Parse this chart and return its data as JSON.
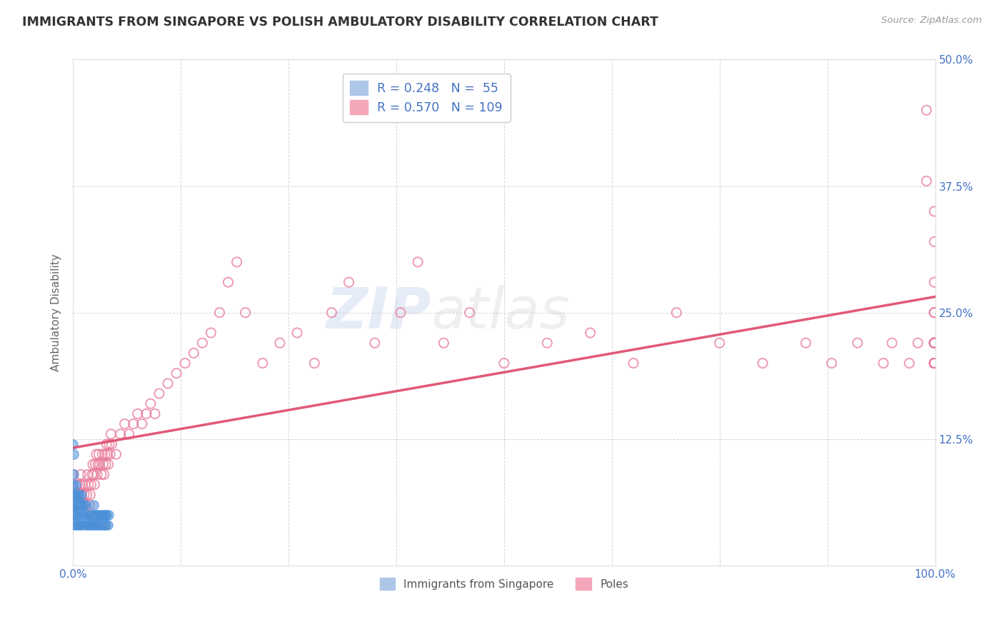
{
  "title": "IMMIGRANTS FROM SINGAPORE VS POLISH AMBULATORY DISABILITY CORRELATION CHART",
  "source": "Source: ZipAtlas.com",
  "ylabel": "Ambulatory Disability",
  "xlim": [
    0.0,
    1.0
  ],
  "ylim": [
    0.0,
    0.5
  ],
  "singapore_color": "#4a90d9",
  "poles_color": "#e87a9a",
  "regression_poles_color": "#e05070",
  "regression_sg_color": "#6699cc",
  "watermark_zip": "ZIP",
  "watermark_atlas": "atlas",
  "background_color": "#ffffff",
  "grid_color": "#cccccc",
  "legend_sg_label": "R = 0.248   N =  55",
  "legend_poles_label": "R = 0.570   N = 109",
  "legend_bottom_sg": "Immigrants from Singapore",
  "legend_bottom_poles": "Poles",
  "sg_R": "0.248",
  "sg_N": "55",
  "poles_R": "0.570",
  "poles_N": "109",
  "singapore_x": [
    0.0,
    0.0,
    0.0,
    0.001,
    0.001,
    0.001,
    0.001,
    0.001,
    0.002,
    0.002,
    0.003,
    0.003,
    0.003,
    0.004,
    0.004,
    0.005,
    0.006,
    0.006,
    0.007,
    0.007,
    0.008,
    0.009,
    0.01,
    0.01,
    0.01,
    0.011,
    0.012,
    0.013,
    0.014,
    0.015,
    0.016,
    0.017,
    0.018,
    0.019,
    0.02,
    0.021,
    0.022,
    0.023,
    0.024,
    0.025,
    0.026,
    0.027,
    0.028,
    0.029,
    0.03,
    0.031,
    0.033,
    0.034,
    0.035,
    0.036,
    0.037,
    0.038,
    0.039,
    0.04,
    0.041
  ],
  "singapore_y": [
    0.05,
    0.08,
    0.12,
    0.04,
    0.06,
    0.07,
    0.09,
    0.11,
    0.05,
    0.07,
    0.04,
    0.06,
    0.08,
    0.05,
    0.07,
    0.06,
    0.04,
    0.06,
    0.05,
    0.07,
    0.04,
    0.06,
    0.04,
    0.06,
    0.07,
    0.05,
    0.06,
    0.04,
    0.05,
    0.06,
    0.04,
    0.05,
    0.04,
    0.05,
    0.04,
    0.05,
    0.04,
    0.05,
    0.06,
    0.04,
    0.05,
    0.04,
    0.05,
    0.04,
    0.05,
    0.04,
    0.05,
    0.04,
    0.05,
    0.04,
    0.05,
    0.04,
    0.05,
    0.04,
    0.05
  ],
  "poles_x": [
    0.0,
    0.0,
    0.001,
    0.002,
    0.003,
    0.004,
    0.005,
    0.006,
    0.007,
    0.008,
    0.009,
    0.01,
    0.011,
    0.012,
    0.013,
    0.014,
    0.015,
    0.016,
    0.017,
    0.018,
    0.019,
    0.02,
    0.021,
    0.022,
    0.023,
    0.024,
    0.025,
    0.026,
    0.027,
    0.028,
    0.029,
    0.03,
    0.031,
    0.033,
    0.034,
    0.035,
    0.036,
    0.037,
    0.038,
    0.039,
    0.04,
    0.041,
    0.042,
    0.043,
    0.044,
    0.045,
    0.05,
    0.055,
    0.06,
    0.065,
    0.07,
    0.075,
    0.08,
    0.085,
    0.09,
    0.095,
    0.1,
    0.11,
    0.12,
    0.13,
    0.14,
    0.15,
    0.16,
    0.17,
    0.18,
    0.19,
    0.2,
    0.22,
    0.24,
    0.26,
    0.28,
    0.3,
    0.32,
    0.35,
    0.38,
    0.4,
    0.43,
    0.46,
    0.5,
    0.55,
    0.6,
    0.65,
    0.7,
    0.75,
    0.8,
    0.85,
    0.88,
    0.91,
    0.94,
    0.95,
    0.97,
    0.98,
    0.99,
    0.99,
    0.999,
    0.999,
    0.999,
    0.999,
    0.999,
    0.999,
    0.999,
    0.999,
    0.999,
    0.999,
    0.999,
    0.999,
    0.999,
    0.999,
    0.999
  ],
  "poles_y": [
    0.07,
    0.09,
    0.06,
    0.05,
    0.07,
    0.06,
    0.08,
    0.07,
    0.06,
    0.08,
    0.09,
    0.07,
    0.08,
    0.06,
    0.07,
    0.08,
    0.06,
    0.07,
    0.09,
    0.08,
    0.06,
    0.07,
    0.08,
    0.09,
    0.1,
    0.09,
    0.08,
    0.1,
    0.11,
    0.09,
    0.1,
    0.11,
    0.1,
    0.09,
    0.11,
    0.1,
    0.09,
    0.11,
    0.1,
    0.12,
    0.11,
    0.1,
    0.12,
    0.11,
    0.13,
    0.12,
    0.11,
    0.13,
    0.14,
    0.13,
    0.14,
    0.15,
    0.14,
    0.15,
    0.16,
    0.15,
    0.17,
    0.18,
    0.19,
    0.2,
    0.21,
    0.22,
    0.23,
    0.25,
    0.28,
    0.3,
    0.25,
    0.2,
    0.22,
    0.23,
    0.2,
    0.25,
    0.28,
    0.22,
    0.25,
    0.3,
    0.22,
    0.25,
    0.2,
    0.22,
    0.23,
    0.2,
    0.25,
    0.22,
    0.2,
    0.22,
    0.2,
    0.22,
    0.2,
    0.22,
    0.2,
    0.22,
    0.45,
    0.38,
    0.28,
    0.22,
    0.2,
    0.22,
    0.25,
    0.2,
    0.22,
    0.2,
    0.35,
    0.32,
    0.22,
    0.2,
    0.22,
    0.2,
    0.25
  ]
}
